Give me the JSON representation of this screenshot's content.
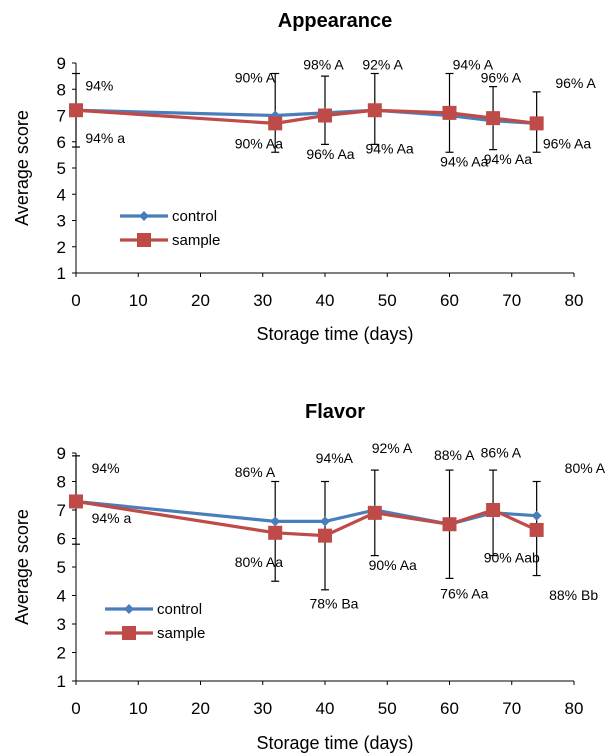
{
  "colors": {
    "control": "#4a7ebb",
    "sample": "#be4b48",
    "axis": "#000000",
    "errorbar": "#000000"
  },
  "chart_data": [
    {
      "type": "line",
      "title": "Appearance",
      "xlabel": "Storage time (days)",
      "ylabel": "Average score",
      "xlim": [
        0,
        80
      ],
      "ylim": [
        1,
        9
      ],
      "xticks": [
        "0",
        "10",
        "20",
        "30",
        "40",
        "50",
        "60",
        "70",
        "80"
      ],
      "yticks": [
        "1",
        "2",
        "3",
        "4",
        "5",
        "6",
        "7",
        "8",
        "9"
      ],
      "grid": false,
      "legend": "lower-left",
      "x": [
        0,
        32,
        40,
        48,
        60,
        67,
        74
      ],
      "series": [
        {
          "name": "control",
          "marker": "diamond",
          "values": [
            7.2,
            7.0,
            7.1,
            7.2,
            7.0,
            6.8,
            6.7
          ]
        },
        {
          "name": "sample",
          "marker": "square",
          "values": [
            7.2,
            6.7,
            7.0,
            7.2,
            7.1,
            6.9,
            6.7
          ]
        }
      ],
      "error_bars": [
        {
          "x": 0,
          "low": 5.8,
          "high": 8.6
        },
        {
          "x": 32,
          "low": 5.6,
          "high": 8.6
        },
        {
          "x": 40,
          "low": 5.9,
          "high": 8.5
        },
        {
          "x": 48,
          "low": 5.9,
          "high": 8.6
        },
        {
          "x": 60,
          "low": 5.6,
          "high": 8.6
        },
        {
          "x": 67,
          "low": 5.7,
          "high": 8.1
        },
        {
          "x": 74,
          "low": 5.6,
          "high": 7.9
        }
      ],
      "annotations": [
        {
          "text": "94%",
          "x": 1.5,
          "y": 7.95,
          "anchor": "start"
        },
        {
          "text": "94% a",
          "x": 1.5,
          "y": 5.95,
          "anchor": "start"
        },
        {
          "text": "90% A",
          "x": 25.5,
          "y": 8.25,
          "anchor": "start"
        },
        {
          "text": "90% Aa",
          "x": 25.5,
          "y": 5.75,
          "anchor": "start"
        },
        {
          "text": "98% A",
          "x": 36.5,
          "y": 8.75,
          "anchor": "start"
        },
        {
          "text": "96% Aa",
          "x": 37.0,
          "y": 5.35,
          "anchor": "start"
        },
        {
          "text": "92% A",
          "x": 46.0,
          "y": 8.75,
          "anchor": "start"
        },
        {
          "text": "94% Aa",
          "x": 46.5,
          "y": 5.55,
          "anchor": "start"
        },
        {
          "text": "94% A",
          "x": 60.5,
          "y": 8.75,
          "anchor": "start"
        },
        {
          "text": "94% Aa",
          "x": 58.5,
          "y": 5.05,
          "anchor": "start"
        },
        {
          "text": "96% A",
          "x": 65.0,
          "y": 8.25,
          "anchor": "start"
        },
        {
          "text": "94% Aa",
          "x": 65.5,
          "y": 5.15,
          "anchor": "start"
        },
        {
          "text": "96% A",
          "x": 77.0,
          "y": 8.05,
          "anchor": "start"
        },
        {
          "text": "96% Aa",
          "x": 75.0,
          "y": 5.75,
          "anchor": "start"
        }
      ]
    },
    {
      "type": "line",
      "title": "Flavor",
      "xlabel": "Storage time (days)",
      "ylabel": "Average score",
      "xlim": [
        0,
        80
      ],
      "ylim": [
        1,
        9
      ],
      "xticks": [
        "0",
        "10",
        "20",
        "30",
        "40",
        "50",
        "60",
        "70",
        "80"
      ],
      "yticks": [
        "1",
        "2",
        "3",
        "4",
        "5",
        "6",
        "7",
        "8",
        "9"
      ],
      "grid": false,
      "legend": "lower-left",
      "x": [
        0,
        32,
        40,
        48,
        60,
        67,
        74
      ],
      "series": [
        {
          "name": "control",
          "marker": "diamond",
          "values": [
            7.3,
            6.6,
            6.6,
            7.0,
            6.5,
            6.9,
            6.8
          ]
        },
        {
          "name": "sample",
          "marker": "square",
          "values": [
            7.3,
            6.2,
            6.1,
            6.9,
            6.5,
            7.0,
            6.3
          ]
        }
      ],
      "error_bars": [
        {
          "x": 0,
          "low": 5.8,
          "high": 8.9
        },
        {
          "x": 32,
          "low": 4.5,
          "high": 8.0
        },
        {
          "x": 40,
          "low": 4.2,
          "high": 8.0
        },
        {
          "x": 48,
          "low": 5.4,
          "high": 8.4
        },
        {
          "x": 60,
          "low": 4.6,
          "high": 8.4
        },
        {
          "x": 67,
          "low": 5.4,
          "high": 8.4
        },
        {
          "x": 74,
          "low": 4.7,
          "high": 8.0
        }
      ],
      "annotations": [
        {
          "text": "94%",
          "x": 2.5,
          "y": 8.3,
          "anchor": "start"
        },
        {
          "text": "94% a",
          "x": 2.5,
          "y": 6.55,
          "anchor": "start"
        },
        {
          "text": "86% A",
          "x": 25.5,
          "y": 8.15,
          "anchor": "start"
        },
        {
          "text": "80% Aa",
          "x": 25.5,
          "y": 5.0,
          "anchor": "start"
        },
        {
          "text": "94%A",
          "x": 38.5,
          "y": 8.65,
          "anchor": "start"
        },
        {
          "text": "78% Ba",
          "x": 37.5,
          "y": 3.55,
          "anchor": "start"
        },
        {
          "text": "92% A",
          "x": 47.5,
          "y": 9.0,
          "anchor": "start"
        },
        {
          "text": "90% Aa",
          "x": 47.0,
          "y": 4.9,
          "anchor": "start"
        },
        {
          "text": "88% A",
          "x": 57.5,
          "y": 8.75,
          "anchor": "start"
        },
        {
          "text": "76% Aa",
          "x": 58.5,
          "y": 3.9,
          "anchor": "start"
        },
        {
          "text": "86% A",
          "x": 65.0,
          "y": 8.85,
          "anchor": "start"
        },
        {
          "text": "90% Aab",
          "x": 65.5,
          "y": 5.15,
          "anchor": "start"
        },
        {
          "text": "80% A",
          "x": 78.5,
          "y": 8.3,
          "anchor": "start"
        },
        {
          "text": "88% Bb",
          "x": 76.0,
          "y": 3.85,
          "anchor": "start"
        }
      ]
    }
  ]
}
